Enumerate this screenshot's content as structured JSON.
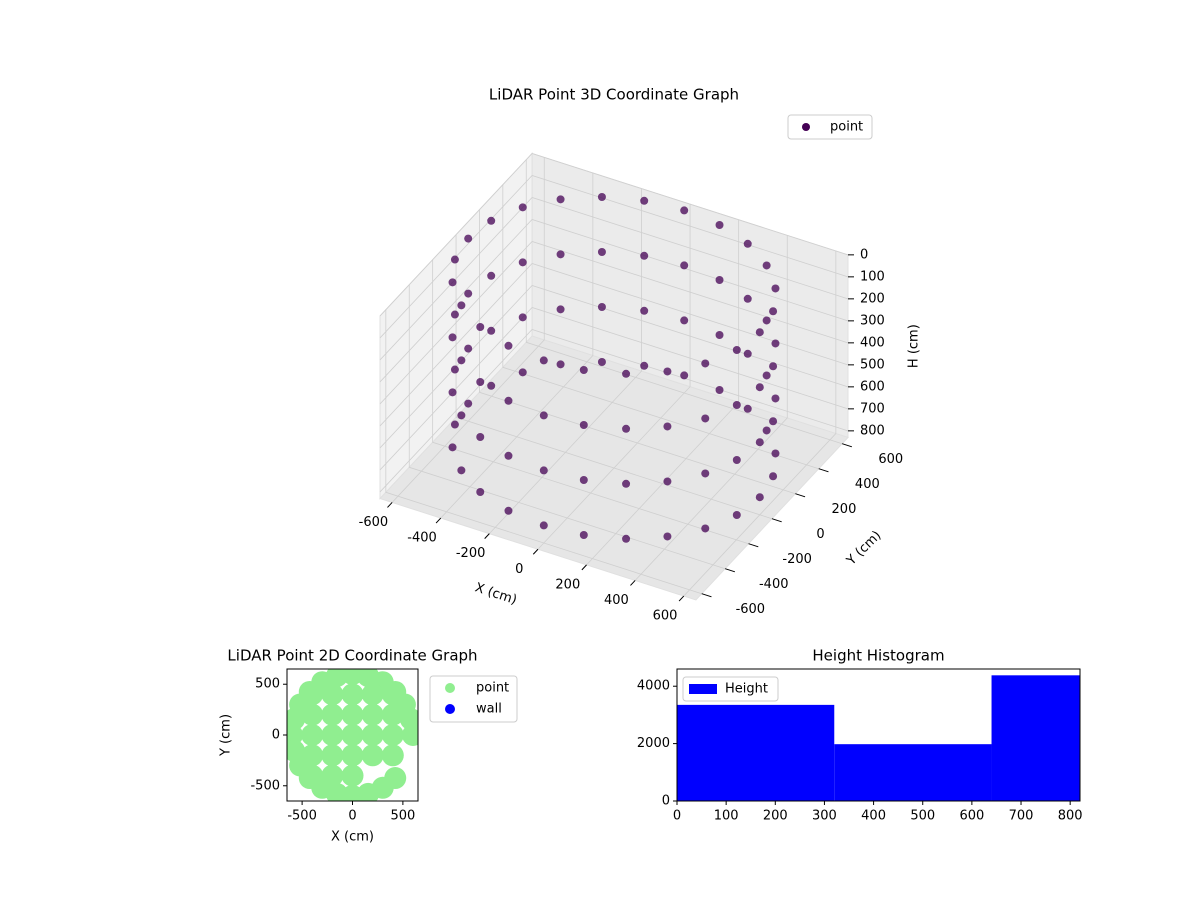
{
  "chart_data": [
    {
      "type": "scatter3d",
      "title": "LiDAR Point 3D Coordinate Graph",
      "xlabel": "X (cm)",
      "ylabel": "Y (cm)",
      "zlabel": "H (cm)",
      "xlim": [
        -650,
        650
      ],
      "ylim": [
        -650,
        650
      ],
      "zlim": [
        0,
        830
      ],
      "z_inverted": true,
      "xticks": [
        -600,
        -400,
        -200,
        0,
        200,
        400,
        600
      ],
      "yticks": [
        -600,
        -400,
        -200,
        0,
        200,
        400,
        600
      ],
      "zticks": [
        0,
        100,
        200,
        300,
        400,
        500,
        600,
        700,
        800
      ],
      "legend": "upper right",
      "grid": true,
      "series": [
        {
          "name": "point",
          "color": "#440154",
          "x": [
            600,
            580,
            520,
            424,
            300,
            155,
            0,
            -155,
            -300,
            -424,
            -520,
            -580,
            -600,
            -580,
            -520,
            -424,
            -300,
            -155,
            0,
            155,
            300,
            424,
            520,
            580,
            600,
            580,
            520,
            424,
            300,
            155,
            0,
            -155,
            -300,
            -424,
            -520,
            -580,
            -600,
            -580,
            -520,
            -424,
            -300,
            -155,
            0,
            155,
            300,
            424,
            520,
            580,
            600,
            580,
            520,
            424,
            300,
            155,
            0,
            -155,
            -300,
            -424,
            -520,
            -580,
            -600,
            -580,
            -520,
            -424,
            -300,
            -155,
            0,
            155,
            300,
            424,
            520,
            580,
            600,
            580,
            520,
            424,
            300,
            155,
            0,
            -155,
            -300,
            -424,
            -520,
            -580,
            -600,
            -580,
            -520,
            -424,
            -300,
            -155,
            0,
            155,
            300,
            424,
            520,
            580
          ],
          "y": [
            0,
            155,
            300,
            424,
            520,
            580,
            600,
            580,
            520,
            424,
            300,
            155,
            0,
            -155,
            -300,
            -424,
            -520,
            -580,
            -600,
            -580,
            -520,
            -424,
            -300,
            -155,
            0,
            155,
            300,
            424,
            520,
            580,
            600,
            580,
            520,
            424,
            300,
            155,
            0,
            -155,
            -300,
            -424,
            -520,
            -580,
            -600,
            -580,
            -520,
            -424,
            -300,
            -155,
            0,
            155,
            300,
            424,
            520,
            580,
            600,
            580,
            520,
            424,
            300,
            155,
            0,
            -155,
            -300,
            -424,
            -520,
            -580,
            -600,
            -580,
            -520,
            -424,
            -300,
            -155,
            0,
            155,
            300,
            424,
            520,
            580,
            600,
            580,
            520,
            424,
            300,
            155,
            0,
            -155,
            -300,
            -424,
            -520,
            -580,
            -600,
            -580,
            -520,
            -424,
            -300,
            -155
          ],
          "z": [
            0,
            0,
            0,
            0,
            0,
            0,
            0,
            0,
            0,
            0,
            0,
            0,
            0,
            0,
            0,
            0,
            0,
            0,
            0,
            0,
            0,
            0,
            0,
            0,
            250,
            250,
            250,
            250,
            250,
            250,
            250,
            250,
            250,
            250,
            250,
            250,
            250,
            250,
            250,
            250,
            250,
            250,
            250,
            250,
            250,
            250,
            250,
            250,
            500,
            500,
            500,
            500,
            500,
            500,
            500,
            500,
            500,
            500,
            500,
            500,
            500,
            500,
            500,
            500,
            500,
            500,
            500,
            500,
            500,
            500,
            500,
            500,
            750,
            750,
            750,
            750,
            750,
            750,
            750,
            750,
            750,
            750,
            750,
            750,
            750,
            750,
            750,
            750,
            750,
            750,
            750,
            750,
            750,
            750,
            750,
            750
          ]
        }
      ]
    },
    {
      "type": "scatter",
      "title": "LiDAR Point 2D Coordinate Graph",
      "xlabel": "X (cm)",
      "ylabel": "Y (cm)",
      "xlim": [
        -650,
        650
      ],
      "ylim": [
        -650,
        650
      ],
      "xticks": [
        -500,
        0,
        500
      ],
      "yticks": [
        -500,
        0,
        500
      ],
      "legend": "outside right",
      "series": [
        {
          "name": "point",
          "color": "#90ee90",
          "x": [
            600,
            580,
            520,
            424,
            300,
            155,
            0,
            -155,
            -300,
            -424,
            -520,
            -580,
            -600,
            -580,
            -520,
            -424,
            -300,
            -155,
            0,
            155,
            300,
            424,
            -400,
            -400,
            -400,
            -400,
            -400,
            -200,
            -200,
            -200,
            -200,
            -200,
            0,
            0,
            0,
            0,
            0,
            200,
            200,
            200,
            200,
            400,
            400,
            400,
            400
          ],
          "y": [
            0,
            155,
            300,
            424,
            520,
            580,
            600,
            580,
            520,
            424,
            300,
            155,
            0,
            -155,
            -300,
            -424,
            -520,
            -580,
            -600,
            -580,
            -520,
            -424,
            -400,
            -200,
            0,
            200,
            400,
            -400,
            -200,
            0,
            200,
            400,
            -400,
            -200,
            0,
            200,
            400,
            -200,
            0,
            200,
            400,
            -200,
            0,
            200,
            400
          ]
        },
        {
          "name": "wall",
          "color": "#0000ff",
          "x": [],
          "y": []
        }
      ]
    },
    {
      "type": "histogram",
      "title": "Height Histogram",
      "bins": [
        0,
        320,
        640,
        820
      ],
      "counts": [
        3350,
        1980,
        4380
      ],
      "xlim": [
        0,
        820
      ],
      "ylim": [
        0,
        4600
      ],
      "xticks": [
        0,
        100,
        200,
        300,
        400,
        500,
        600,
        700,
        800
      ],
      "yticks": [
        0,
        2000,
        4000
      ],
      "legend": "upper left",
      "series_name": "Height",
      "color": "#0000ff"
    }
  ]
}
